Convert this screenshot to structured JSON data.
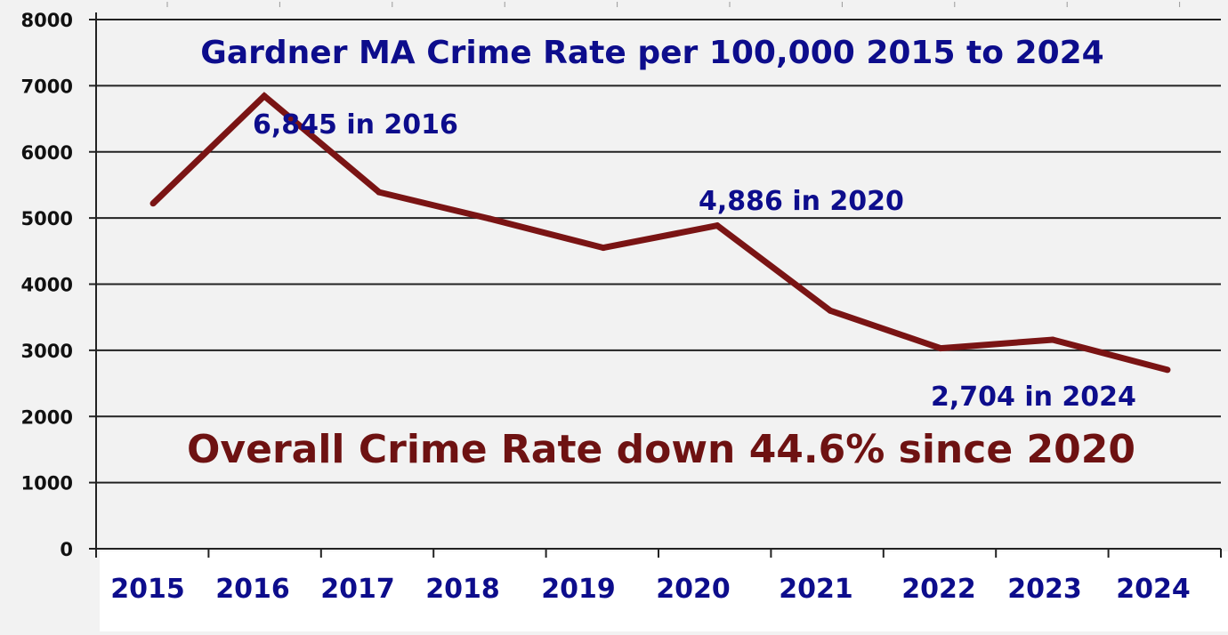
{
  "chart_data": {
    "type": "line",
    "title": "Gardner MA Crime Rate per 100,000 2015 to 2024",
    "categories": [
      "2015",
      "2016",
      "2017",
      "2018",
      "2019",
      "2020",
      "2021",
      "2022",
      "2023",
      "2024"
    ],
    "series": [
      {
        "values": [
          5220,
          6845,
          5390,
          4990,
          4550,
          4886,
          3600,
          3030,
          3160,
          2704
        ]
      }
    ],
    "ylim": [
      0,
      8000
    ],
    "y_ticks": [
      "0",
      "1000",
      "2000",
      "3000",
      "4000",
      "5000",
      "6000",
      "7000",
      "8000"
    ],
    "grid": true,
    "annotations": [
      {
        "text": "6,845 in 2016"
      },
      {
        "text": "4,886 in 2020"
      },
      {
        "text": "2,704 in 2024"
      },
      {
        "text": "Overall Crime Rate down 44.6% since 2020"
      }
    ],
    "colors": {
      "line": "#7a1414",
      "title": "#0d0d8c",
      "annotation": "#0d0d8c",
      "headline": "#6e1212",
      "tick_label_x": "#0d0d8c",
      "tick_label_y": "#111111",
      "grid": "#222222",
      "background": "#f2f2f2",
      "x_band": "#ffffff"
    }
  }
}
